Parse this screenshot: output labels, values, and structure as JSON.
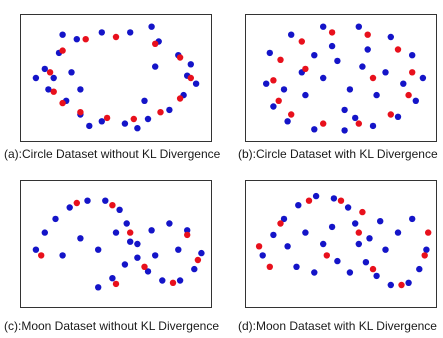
{
  "figure": {
    "colors": {
      "uncertain": "#e8101c",
      "confident": "#1414c8"
    },
    "subplots": [
      {
        "caption": "(a):Circle Dataset without KL Divergence"
      },
      {
        "caption": "(b):Circle Dataset with KL Divergence"
      },
      {
        "caption": "(c):Moon Dataset without KL Divergence"
      },
      {
        "caption": "(d):Moon Dataset with KL Divergence"
      }
    ]
  },
  "chart_data": [
    {
      "type": "scatter",
      "title": "(a):Circle Dataset without KL Divergence",
      "xlabel": "",
      "ylabel": "",
      "grid": false,
      "shape": "circle",
      "kl_divergence": false,
      "series": [
        {
          "color": "#1414c8",
          "points": [
            [
              0.15,
              0.5
            ],
            [
              0.22,
              0.3
            ],
            [
              0.3,
              0.18
            ],
            [
              0.42,
              0.12
            ],
            [
              0.55,
              0.1
            ],
            [
              0.68,
              0.14
            ],
            [
              0.8,
              0.22
            ],
            [
              0.88,
              0.35
            ],
            [
              0.9,
              0.52
            ],
            [
              0.85,
              0.7
            ],
            [
              0.74,
              0.82
            ],
            [
              0.58,
              0.9
            ],
            [
              0.42,
              0.9
            ],
            [
              0.28,
              0.84
            ],
            [
              0.18,
              0.72
            ],
            [
              0.1,
              0.58
            ],
            [
              0.12,
              0.4
            ],
            [
              0.35,
              0.08
            ],
            [
              0.62,
              0.06
            ],
            [
              0.95,
              0.45
            ],
            [
              0.92,
              0.62
            ],
            [
              0.05,
              0.5
            ],
            [
              0.2,
              0.88
            ],
            [
              0.7,
              0.95
            ],
            [
              0.25,
              0.55
            ],
            [
              0.3,
              0.4
            ],
            [
              0.72,
              0.6
            ],
            [
              0.66,
              0.3
            ]
          ]
        },
        {
          "color": "#e8101c",
          "points": [
            [
              0.2,
              0.28
            ],
            [
              0.3,
              0.2
            ],
            [
              0.45,
              0.15
            ],
            [
              0.6,
              0.14
            ],
            [
              0.75,
              0.2
            ],
            [
              0.86,
              0.32
            ],
            [
              0.92,
              0.5
            ],
            [
              0.86,
              0.68
            ],
            [
              0.72,
              0.8
            ],
            [
              0.5,
              0.86
            ],
            [
              0.33,
              0.84
            ],
            [
              0.2,
              0.74
            ],
            [
              0.13,
              0.55
            ],
            [
              0.15,
              0.38
            ]
          ]
        }
      ]
    },
    {
      "type": "scatter",
      "title": "(b):Circle Dataset with KL Divergence",
      "xlabel": "",
      "ylabel": "",
      "grid": false,
      "shape": "circle",
      "kl_divergence": true,
      "series": [
        {
          "color": "#1414c8",
          "points": [
            [
              0.08,
              0.45
            ],
            [
              0.12,
              0.25
            ],
            [
              0.2,
              0.12
            ],
            [
              0.35,
              0.05
            ],
            [
              0.52,
              0.04
            ],
            [
              0.68,
              0.08
            ],
            [
              0.82,
              0.16
            ],
            [
              0.92,
              0.3
            ],
            [
              0.96,
              0.5
            ],
            [
              0.9,
              0.7
            ],
            [
              0.78,
              0.86
            ],
            [
              0.6,
              0.95
            ],
            [
              0.4,
              0.95
            ],
            [
              0.22,
              0.88
            ],
            [
              0.1,
              0.72
            ],
            [
              0.3,
              0.35
            ],
            [
              0.4,
              0.5
            ],
            [
              0.55,
              0.4
            ],
            [
              0.62,
              0.6
            ],
            [
              0.48,
              0.65
            ],
            [
              0.35,
              0.7
            ],
            [
              0.7,
              0.35
            ],
            [
              0.75,
              0.55
            ],
            [
              0.28,
              0.55
            ],
            [
              0.52,
              0.22
            ],
            [
              0.45,
              0.78
            ],
            [
              0.65,
              0.75
            ],
            [
              0.58,
              0.15
            ],
            [
              0.85,
              0.45
            ],
            [
              0.18,
              0.4
            ]
          ]
        },
        {
          "color": "#e8101c",
          "points": [
            [
              0.15,
              0.3
            ],
            [
              0.22,
              0.18
            ],
            [
              0.4,
              0.1
            ],
            [
              0.6,
              0.1
            ],
            [
              0.78,
              0.18
            ],
            [
              0.88,
              0.35
            ],
            [
              0.9,
              0.55
            ],
            [
              0.82,
              0.75
            ],
            [
              0.65,
              0.88
            ],
            [
              0.45,
              0.9
            ],
            [
              0.28,
              0.82
            ],
            [
              0.16,
              0.66
            ],
            [
              0.12,
              0.48
            ],
            [
              0.3,
              0.58
            ],
            [
              0.68,
              0.5
            ]
          ]
        }
      ]
    },
    {
      "type": "scatter",
      "title": "(c):Moon Dataset without KL Divergence",
      "xlabel": "",
      "ylabel": "",
      "grid": false,
      "shape": "two-moons",
      "kl_divergence": false,
      "series": [
        {
          "color": "#1414c8",
          "points": [
            [
              0.05,
              0.45
            ],
            [
              0.1,
              0.6
            ],
            [
              0.16,
              0.72
            ],
            [
              0.24,
              0.82
            ],
            [
              0.34,
              0.88
            ],
            [
              0.44,
              0.88
            ],
            [
              0.52,
              0.8
            ],
            [
              0.56,
              0.68
            ],
            [
              0.58,
              0.52
            ],
            [
              0.62,
              0.38
            ],
            [
              0.68,
              0.26
            ],
            [
              0.76,
              0.18
            ],
            [
              0.86,
              0.18
            ],
            [
              0.94,
              0.28
            ],
            [
              0.98,
              0.42
            ],
            [
              0.4,
              0.12
            ],
            [
              0.48,
              0.2
            ],
            [
              0.55,
              0.32
            ],
            [
              0.62,
              0.5
            ],
            [
              0.7,
              0.62
            ],
            [
              0.8,
              0.68
            ],
            [
              0.9,
              0.62
            ],
            [
              0.3,
              0.55
            ],
            [
              0.4,
              0.45
            ],
            [
              0.5,
              0.6
            ],
            [
              0.72,
              0.4
            ],
            [
              0.2,
              0.4
            ],
            [
              0.85,
              0.45
            ]
          ]
        },
        {
          "color": "#e8101c",
          "points": [
            [
              0.08,
              0.4
            ],
            [
              0.28,
              0.86
            ],
            [
              0.48,
              0.84
            ],
            [
              0.58,
              0.6
            ],
            [
              0.66,
              0.3
            ],
            [
              0.82,
              0.16
            ],
            [
              0.96,
              0.36
            ],
            [
              0.9,
              0.58
            ],
            [
              0.5,
              0.15
            ]
          ]
        }
      ]
    },
    {
      "type": "scatter",
      "title": "(d):Moon Dataset with KL Divergence",
      "xlabel": "",
      "ylabel": "",
      "grid": false,
      "shape": "two-moons",
      "kl_divergence": true,
      "series": [
        {
          "color": "#1414c8",
          "points": [
            [
              0.06,
              0.4
            ],
            [
              0.12,
              0.58
            ],
            [
              0.18,
              0.72
            ],
            [
              0.26,
              0.84
            ],
            [
              0.36,
              0.92
            ],
            [
              0.46,
              0.9
            ],
            [
              0.54,
              0.82
            ],
            [
              0.58,
              0.68
            ],
            [
              0.6,
              0.5
            ],
            [
              0.64,
              0.34
            ],
            [
              0.7,
              0.22
            ],
            [
              0.78,
              0.14
            ],
            [
              0.88,
              0.16
            ],
            [
              0.94,
              0.28
            ],
            [
              0.98,
              0.45
            ],
            [
              0.3,
              0.6
            ],
            [
              0.4,
              0.5
            ],
            [
              0.48,
              0.35
            ],
            [
              0.55,
              0.25
            ],
            [
              0.66,
              0.55
            ],
            [
              0.75,
              0.45
            ],
            [
              0.82,
              0.6
            ],
            [
              0.25,
              0.3
            ],
            [
              0.35,
              0.25
            ],
            [
              0.45,
              0.65
            ],
            [
              0.72,
              0.7
            ],
            [
              0.9,
              0.72
            ],
            [
              0.2,
              0.48
            ]
          ]
        },
        {
          "color": "#e8101c",
          "points": [
            [
              0.04,
              0.48
            ],
            [
              0.16,
              0.68
            ],
            [
              0.32,
              0.88
            ],
            [
              0.5,
              0.88
            ],
            [
              0.6,
              0.6
            ],
            [
              0.68,
              0.28
            ],
            [
              0.84,
              0.14
            ],
            [
              0.97,
              0.4
            ],
            [
              0.99,
              0.6
            ],
            [
              0.42,
              0.4
            ],
            [
              0.62,
              0.78
            ],
            [
              0.1,
              0.3
            ]
          ]
        }
      ]
    }
  ]
}
